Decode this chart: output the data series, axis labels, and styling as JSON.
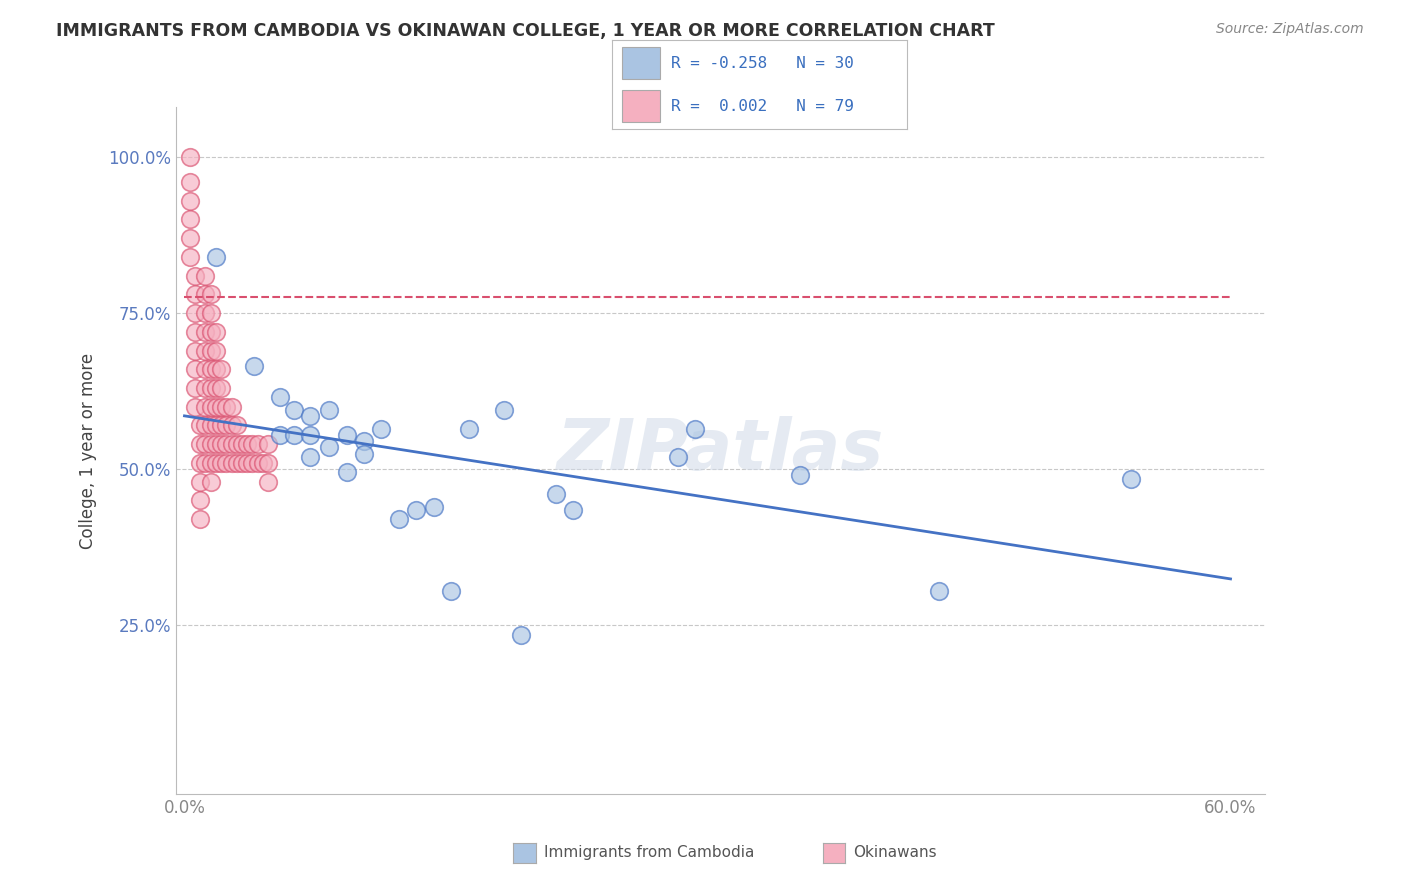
{
  "title": "IMMIGRANTS FROM CAMBODIA VS OKINAWAN COLLEGE, 1 YEAR OR MORE CORRELATION CHART",
  "source": "Source: ZipAtlas.com",
  "ylabel": "College, 1 year or more",
  "xlim": [
    -0.005,
    0.62
  ],
  "ylim": [
    -0.02,
    1.08
  ],
  "xticks": [
    0.0,
    0.6
  ],
  "xticklabels": [
    "0.0%",
    "60.0%"
  ],
  "ytick_positions": [
    0.25,
    0.5,
    0.75,
    1.0
  ],
  "yticklabels": [
    "25.0%",
    "50.0%",
    "75.0%",
    "100.0%"
  ],
  "legend_blue_r": "-0.258",
  "legend_blue_n": "30",
  "legend_pink_r": "0.002",
  "legend_pink_n": "79",
  "legend_labels": [
    "Immigrants from Cambodia",
    "Okinawans"
  ],
  "blue_color": "#aac4e2",
  "pink_color": "#f5b0c0",
  "blue_line_color": "#4472c4",
  "pink_line_color": "#d94f6e",
  "blue_scatter": [
    [
      0.018,
      0.84
    ],
    [
      0.04,
      0.665
    ],
    [
      0.055,
      0.615
    ],
    [
      0.055,
      0.555
    ],
    [
      0.063,
      0.595
    ],
    [
      0.063,
      0.555
    ],
    [
      0.072,
      0.52
    ],
    [
      0.072,
      0.555
    ],
    [
      0.072,
      0.585
    ],
    [
      0.083,
      0.535
    ],
    [
      0.083,
      0.595
    ],
    [
      0.093,
      0.495
    ],
    [
      0.093,
      0.555
    ],
    [
      0.103,
      0.545
    ],
    [
      0.103,
      0.525
    ],
    [
      0.113,
      0.565
    ],
    [
      0.123,
      0.42
    ],
    [
      0.133,
      0.435
    ],
    [
      0.143,
      0.44
    ],
    [
      0.153,
      0.305
    ],
    [
      0.163,
      0.565
    ],
    [
      0.183,
      0.595
    ],
    [
      0.193,
      0.235
    ],
    [
      0.213,
      0.46
    ],
    [
      0.223,
      0.435
    ],
    [
      0.283,
      0.52
    ],
    [
      0.293,
      0.565
    ],
    [
      0.353,
      0.49
    ],
    [
      0.433,
      0.305
    ],
    [
      0.543,
      0.485
    ]
  ],
  "pink_scatter": [
    [
      0.003,
      1.0
    ],
    [
      0.003,
      0.96
    ],
    [
      0.003,
      0.93
    ],
    [
      0.003,
      0.9
    ],
    [
      0.003,
      0.87
    ],
    [
      0.003,
      0.84
    ],
    [
      0.006,
      0.81
    ],
    [
      0.006,
      0.78
    ],
    [
      0.006,
      0.75
    ],
    [
      0.006,
      0.72
    ],
    [
      0.006,
      0.69
    ],
    [
      0.006,
      0.66
    ],
    [
      0.006,
      0.63
    ],
    [
      0.006,
      0.6
    ],
    [
      0.009,
      0.57
    ],
    [
      0.009,
      0.54
    ],
    [
      0.009,
      0.51
    ],
    [
      0.009,
      0.48
    ],
    [
      0.009,
      0.45
    ],
    [
      0.009,
      0.42
    ],
    [
      0.012,
      0.51
    ],
    [
      0.012,
      0.54
    ],
    [
      0.012,
      0.57
    ],
    [
      0.012,
      0.6
    ],
    [
      0.012,
      0.63
    ],
    [
      0.012,
      0.66
    ],
    [
      0.012,
      0.69
    ],
    [
      0.012,
      0.72
    ],
    [
      0.012,
      0.75
    ],
    [
      0.012,
      0.78
    ],
    [
      0.012,
      0.81
    ],
    [
      0.015,
      0.48
    ],
    [
      0.015,
      0.51
    ],
    [
      0.015,
      0.54
    ],
    [
      0.015,
      0.57
    ],
    [
      0.015,
      0.6
    ],
    [
      0.015,
      0.63
    ],
    [
      0.015,
      0.66
    ],
    [
      0.015,
      0.69
    ],
    [
      0.015,
      0.72
    ],
    [
      0.015,
      0.75
    ],
    [
      0.015,
      0.78
    ],
    [
      0.018,
      0.51
    ],
    [
      0.018,
      0.54
    ],
    [
      0.018,
      0.57
    ],
    [
      0.018,
      0.6
    ],
    [
      0.018,
      0.63
    ],
    [
      0.018,
      0.66
    ],
    [
      0.018,
      0.69
    ],
    [
      0.018,
      0.72
    ],
    [
      0.021,
      0.51
    ],
    [
      0.021,
      0.54
    ],
    [
      0.021,
      0.57
    ],
    [
      0.021,
      0.6
    ],
    [
      0.021,
      0.63
    ],
    [
      0.021,
      0.66
    ],
    [
      0.024,
      0.51
    ],
    [
      0.024,
      0.54
    ],
    [
      0.024,
      0.57
    ],
    [
      0.024,
      0.6
    ],
    [
      0.027,
      0.51
    ],
    [
      0.027,
      0.54
    ],
    [
      0.027,
      0.57
    ],
    [
      0.027,
      0.6
    ],
    [
      0.03,
      0.51
    ],
    [
      0.03,
      0.54
    ],
    [
      0.03,
      0.57
    ],
    [
      0.033,
      0.51
    ],
    [
      0.033,
      0.54
    ],
    [
      0.036,
      0.51
    ],
    [
      0.036,
      0.54
    ],
    [
      0.039,
      0.51
    ],
    [
      0.039,
      0.54
    ],
    [
      0.042,
      0.51
    ],
    [
      0.042,
      0.54
    ],
    [
      0.045,
      0.51
    ],
    [
      0.048,
      0.48
    ],
    [
      0.048,
      0.51
    ],
    [
      0.048,
      0.54
    ]
  ],
  "watermark": "ZIPatlas",
  "background_color": "#ffffff",
  "grid_color": "#c8c8c8",
  "pink_line_fixed_y": 0.775
}
